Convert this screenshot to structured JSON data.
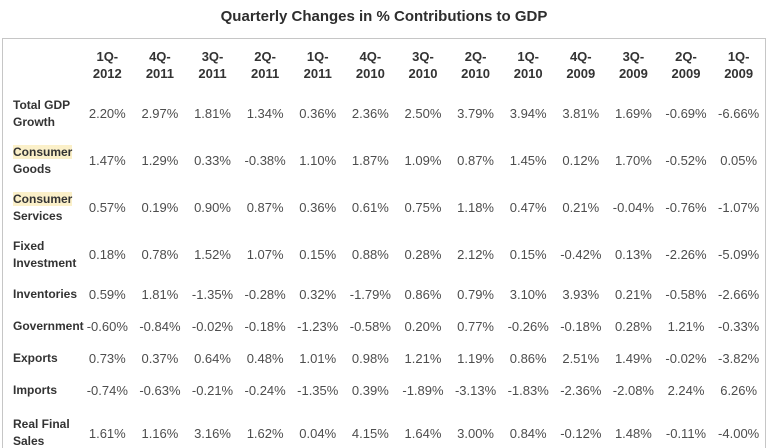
{
  "page": {
    "title": "Quarterly Changes in % Contributions to GDP"
  },
  "chart_data": {
    "type": "table",
    "title": "Quarterly Changes in % Contributions to GDP",
    "columns": [
      "1Q-2012",
      "4Q-2011",
      "3Q-2011",
      "2Q-2011",
      "1Q-2011",
      "4Q-2010",
      "3Q-2010",
      "2Q-2010",
      "1Q-2010",
      "4Q-2009",
      "3Q-2009",
      "2Q-2009",
      "1Q-2009"
    ],
    "rows": [
      {
        "label_lines": [
          "Total GDP",
          "Growth"
        ],
        "highlight_words": [],
        "values": [
          "2.20%",
          "2.97%",
          "1.81%",
          "1.34%",
          "0.36%",
          "2.36%",
          "2.50%",
          "3.79%",
          "3.94%",
          "3.81%",
          "1.69%",
          "-0.69%",
          "-6.66%"
        ]
      },
      {
        "label_lines": [
          "Consumer",
          "Goods"
        ],
        "highlight_words": [
          "Consumer"
        ],
        "values": [
          "1.47%",
          "1.29%",
          "0.33%",
          "-0.38%",
          "1.10%",
          "1.87%",
          "1.09%",
          "0.87%",
          "1.45%",
          "0.12%",
          "1.70%",
          "-0.52%",
          "0.05%"
        ]
      },
      {
        "label_lines": [
          "Consumer",
          "Services"
        ],
        "highlight_words": [
          "Consumer"
        ],
        "values": [
          "0.57%",
          "0.19%",
          "0.90%",
          "0.87%",
          "0.36%",
          "0.61%",
          "0.75%",
          "1.18%",
          "0.47%",
          "0.21%",
          "-0.04%",
          "-0.76%",
          "-1.07%"
        ]
      },
      {
        "label_lines": [
          "Fixed",
          "Investment"
        ],
        "highlight_words": [],
        "values": [
          "0.18%",
          "0.78%",
          "1.52%",
          "1.07%",
          "0.15%",
          "0.88%",
          "0.28%",
          "2.12%",
          "0.15%",
          "-0.42%",
          "0.13%",
          "-2.26%",
          "-5.09%"
        ]
      },
      {
        "label_lines": [
          "Inventories"
        ],
        "highlight_words": [],
        "values": [
          "0.59%",
          "1.81%",
          "-1.35%",
          "-0.28%",
          "0.32%",
          "-1.79%",
          "0.86%",
          "0.79%",
          "3.10%",
          "3.93%",
          "0.21%",
          "-0.58%",
          "-2.66%"
        ]
      },
      {
        "label_lines": [
          "Government"
        ],
        "highlight_words": [],
        "values": [
          "-0.60%",
          "-0.84%",
          "-0.02%",
          "-0.18%",
          "-1.23%",
          "-0.58%",
          "0.20%",
          "0.77%",
          "-0.26%",
          "-0.18%",
          "0.28%",
          "1.21%",
          "-0.33%"
        ]
      },
      {
        "label_lines": [
          "Exports"
        ],
        "highlight_words": [],
        "values": [
          "0.73%",
          "0.37%",
          "0.64%",
          "0.48%",
          "1.01%",
          "0.98%",
          "1.21%",
          "1.19%",
          "0.86%",
          "2.51%",
          "1.49%",
          "-0.02%",
          "-3.82%"
        ]
      },
      {
        "label_lines": [
          "Imports"
        ],
        "highlight_words": [],
        "values": [
          "-0.74%",
          "-0.63%",
          "-0.21%",
          "-0.24%",
          "-1.35%",
          "0.39%",
          "-1.89%",
          "-3.13%",
          "-1.83%",
          "-2.36%",
          "-2.08%",
          "2.24%",
          "6.26%"
        ]
      },
      {
        "label_lines": [
          "Real Final",
          "Sales"
        ],
        "highlight_words": [],
        "values": [
          "1.61%",
          "1.16%",
          "3.16%",
          "1.62%",
          "0.04%",
          "4.15%",
          "1.64%",
          "3.00%",
          "0.84%",
          "-0.12%",
          "1.48%",
          "-0.11%",
          "-4.00%"
        ]
      }
    ],
    "layout": {
      "highlight_color": "#fbf0c9",
      "border_color": "#c6c6c6",
      "header_text_color": "#333333",
      "value_text_color": "#4d4d4d",
      "grid": "outer-border-only",
      "header_position": "top"
    }
  }
}
